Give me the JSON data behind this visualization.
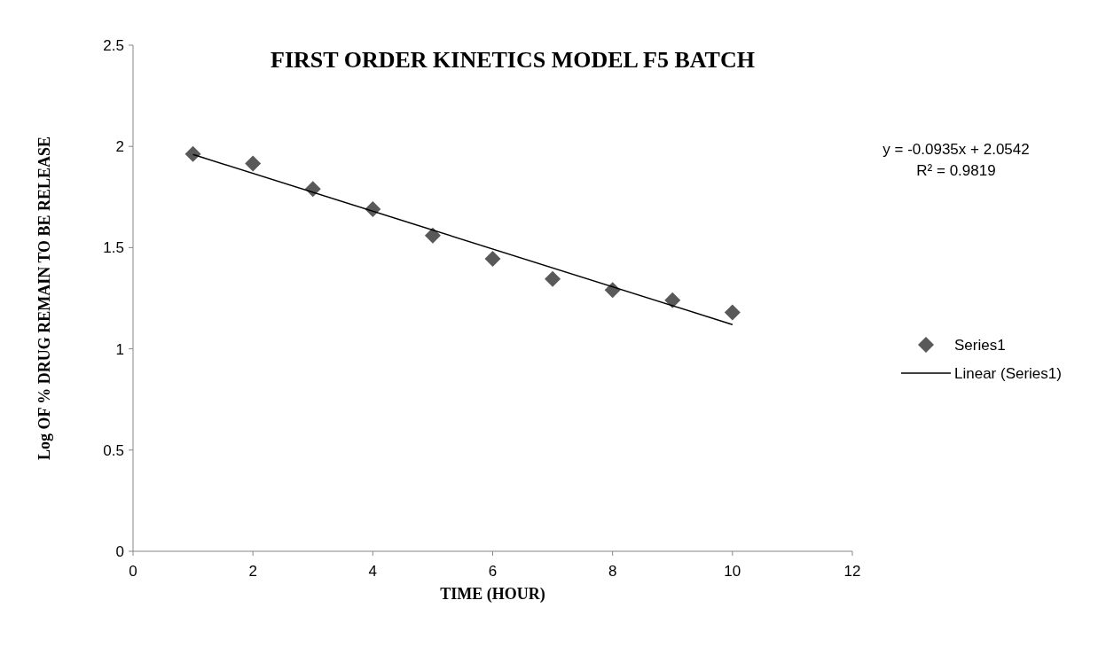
{
  "chart_data": {
    "type": "scatter",
    "title": "FIRST ORDER KINETICS MODEL F5 BATCH",
    "xlabel": "TIME (HOUR)",
    "ylabel": "Log OF % DRUG REMAIN TO BE RELEASE",
    "xlim": [
      0,
      12
    ],
    "xticks": [
      0,
      2,
      4,
      6,
      8,
      10,
      12
    ],
    "ylim": [
      0,
      2.5
    ],
    "yticks": [
      0,
      0.5,
      1,
      1.5,
      2,
      2.5
    ],
    "grid": false,
    "legend": "right",
    "annotations": [
      "y = -0.0935x + 2.0542",
      "R² = 0.9819"
    ],
    "series": [
      {
        "name": "Series1",
        "marker": "diamond",
        "color": "#595959",
        "x": [
          1,
          2,
          3,
          4,
          5,
          6,
          7,
          8,
          9,
          10
        ],
        "values": [
          1.963,
          1.915,
          1.79,
          1.69,
          1.56,
          1.445,
          1.345,
          1.29,
          1.24,
          1.18
        ]
      },
      {
        "name": "Linear (Series1)",
        "type": "line",
        "color": "#000000",
        "x": [
          1,
          10
        ],
        "values": [
          1.96,
          1.12
        ]
      }
    ]
  }
}
